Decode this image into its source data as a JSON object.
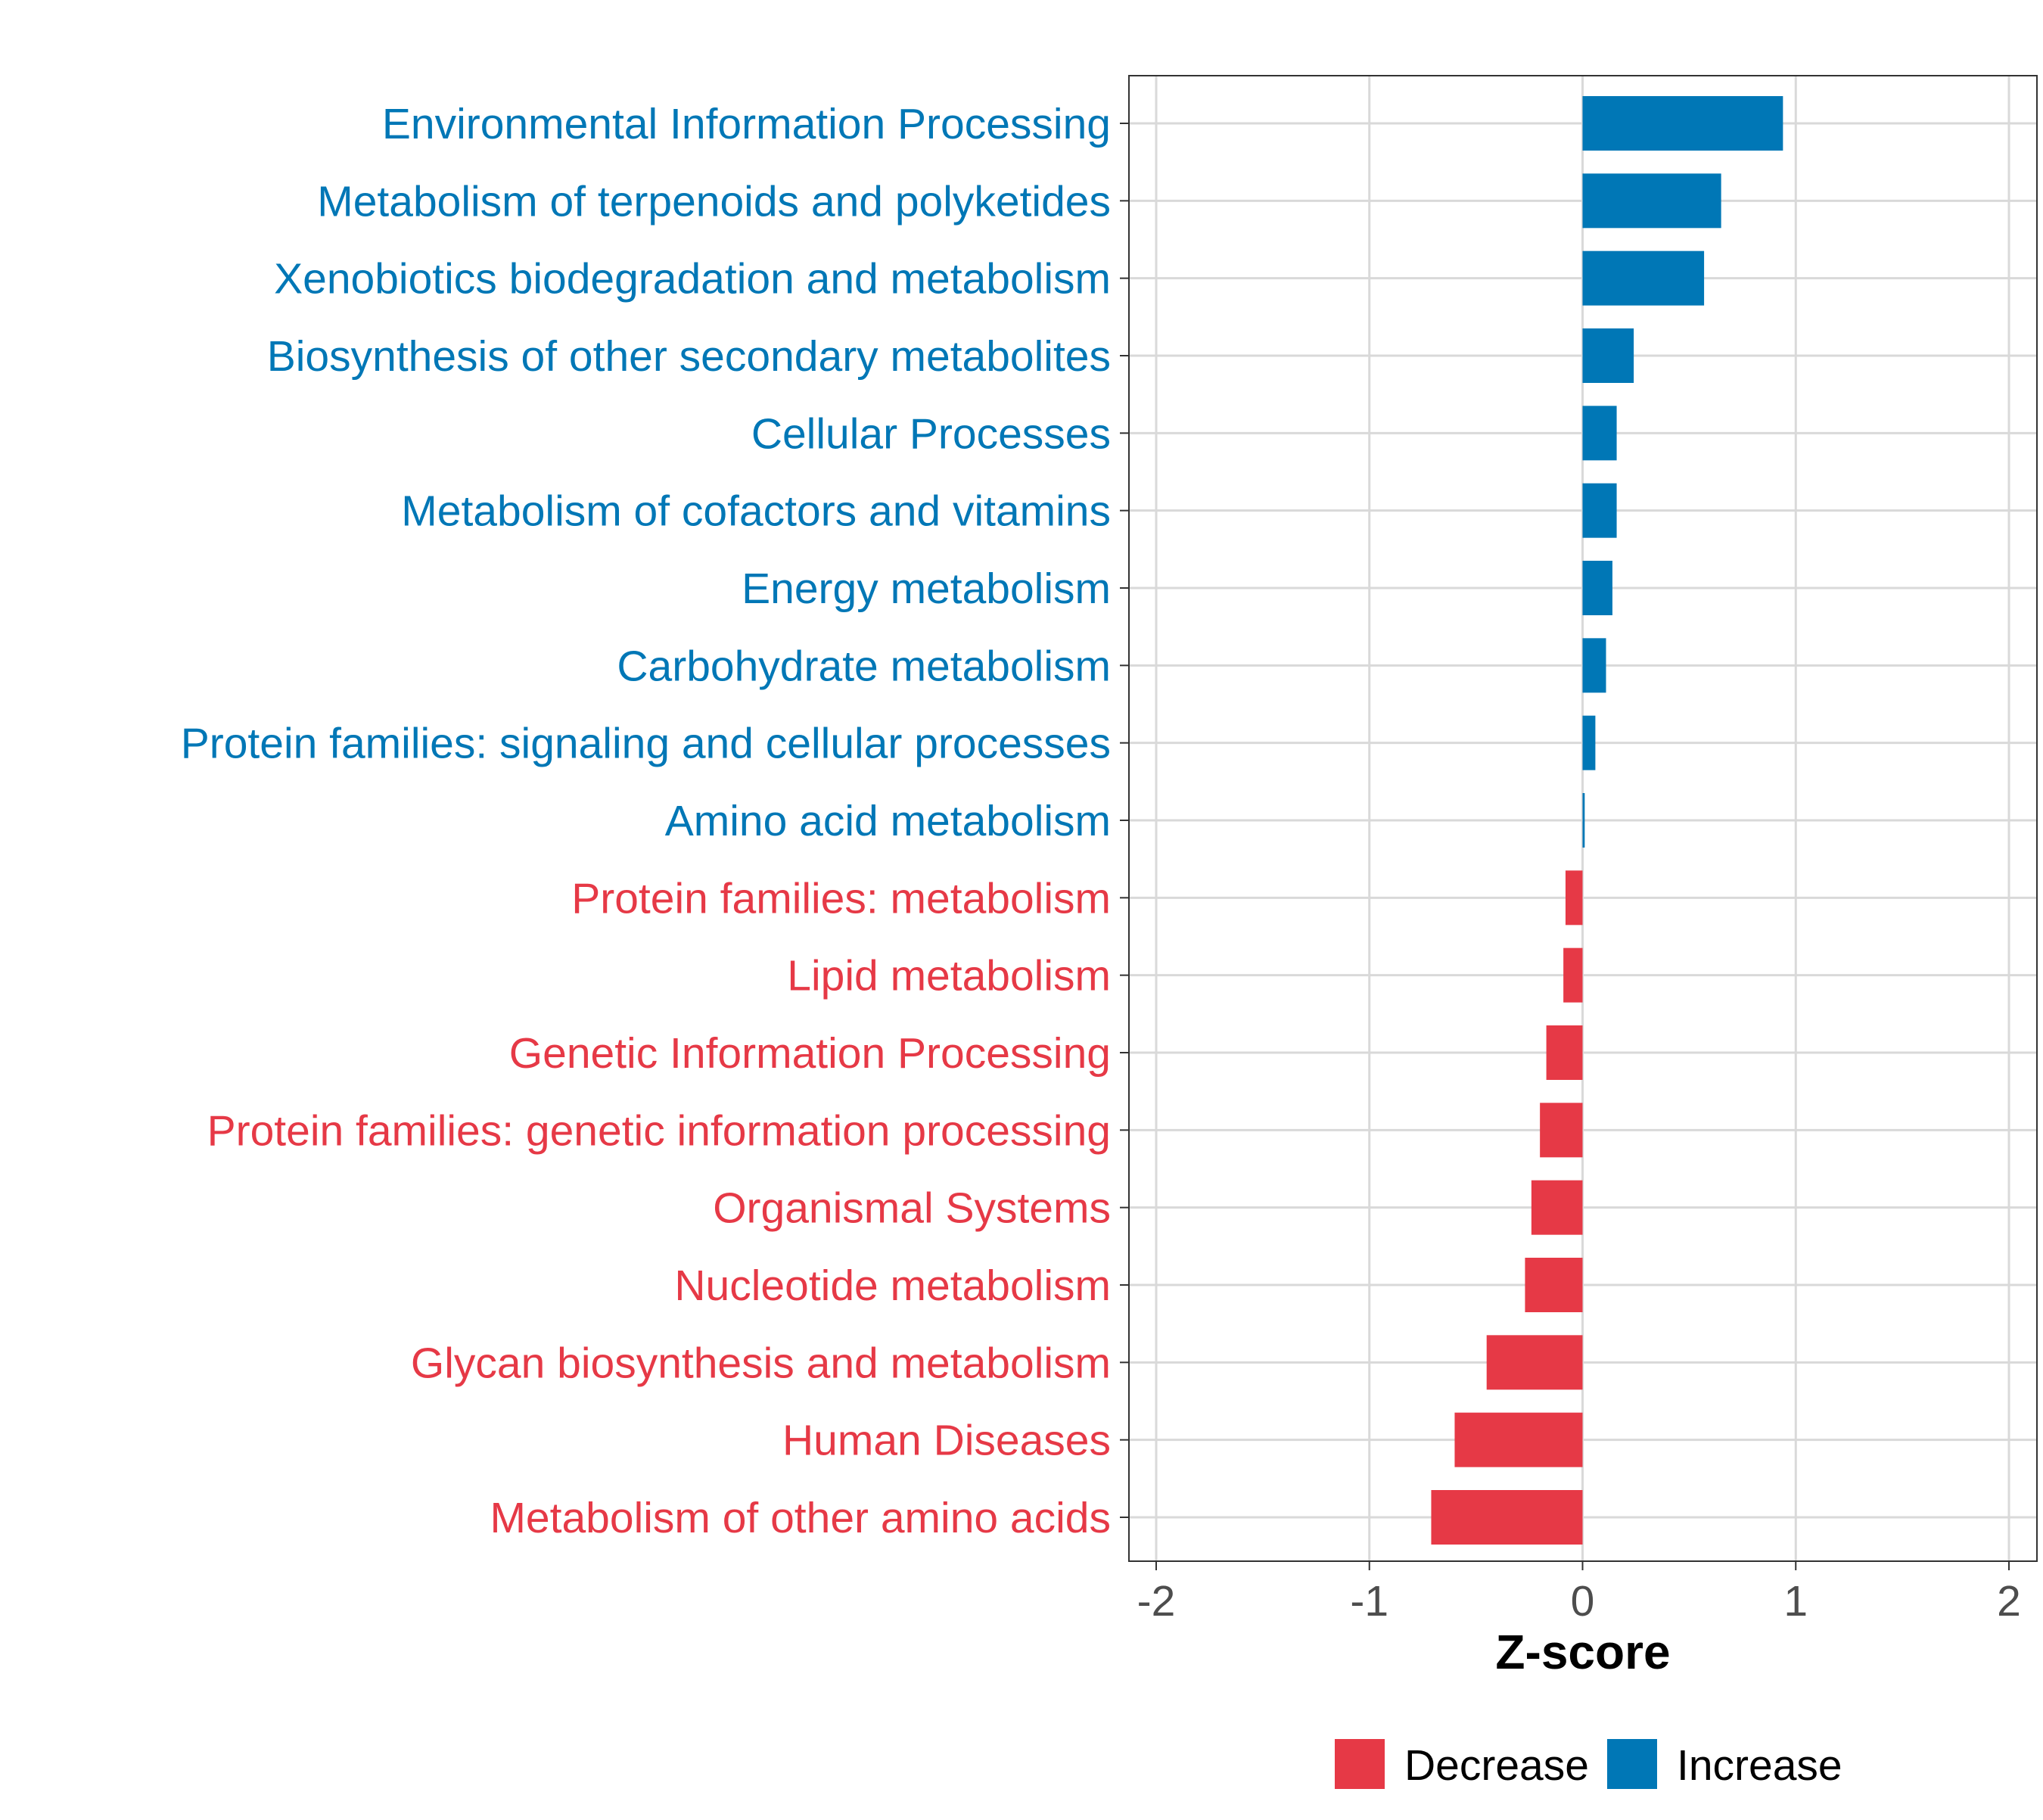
{
  "chart_data": {
    "type": "bar",
    "orientation": "horizontal",
    "title": "",
    "xlabel": "Z-score",
    "ylabel": "",
    "xlim": [
      -2,
      2
    ],
    "xticks": [
      -2,
      -1,
      0,
      1,
      2
    ],
    "xtick_labels": [
      "-2",
      "-1",
      "0",
      "1",
      "2"
    ],
    "grid": true,
    "legend_position": "bottom",
    "colors": {
      "Decrease": "#e63946",
      "Increase": "#0077b6"
    },
    "legend": [
      {
        "label": "Decrease",
        "color": "#e63946"
      },
      {
        "label": "Increase",
        "color": "#0077b6"
      }
    ],
    "categories": [
      "Environmental Information Processing",
      "Metabolism of terpenoids and polyketides",
      "Xenobiotics biodegradation and metabolism",
      "Biosynthesis of other secondary metabolites",
      "Cellular Processes",
      "Metabolism of cofactors and vitamins",
      "Energy metabolism",
      "Carbohydrate metabolism",
      "Protein families: signaling and cellular processes",
      "Amino acid metabolism",
      "Protein families: metabolism",
      "Lipid metabolism",
      "Genetic Information Processing",
      "Protein families: genetic information processing",
      "Organismal Systems",
      "Nucleotide metabolism",
      "Glycan biosynthesis and metabolism",
      "Human Diseases",
      "Metabolism of other amino acids"
    ],
    "values": [
      0.94,
      0.65,
      0.57,
      0.24,
      0.16,
      0.16,
      0.14,
      0.11,
      0.06,
      0.01,
      -0.08,
      -0.09,
      -0.17,
      -0.2,
      -0.24,
      -0.27,
      -0.45,
      -0.6,
      -0.71
    ],
    "groups": [
      "Increase",
      "Increase",
      "Increase",
      "Increase",
      "Increase",
      "Increase",
      "Increase",
      "Increase",
      "Increase",
      "Increase",
      "Decrease",
      "Decrease",
      "Decrease",
      "Decrease",
      "Decrease",
      "Decrease",
      "Decrease",
      "Decrease",
      "Decrease"
    ]
  }
}
